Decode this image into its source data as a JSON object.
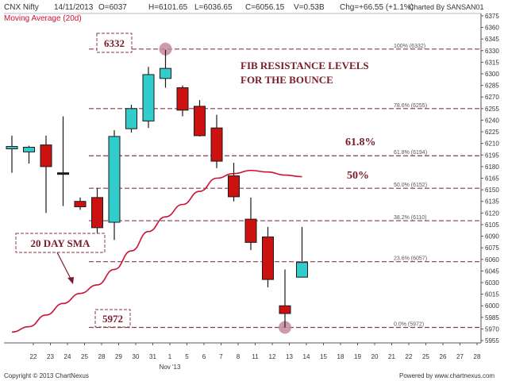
{
  "header": {
    "symbol": "CNX Nifty",
    "date": "14/11/2013",
    "open": "O=6037",
    "high": "H=6101.65",
    "low": "L=6036.65",
    "close": "C=6056.15",
    "volume": "V=0.53B",
    "change": "Chg=+66.55 (+1.1%)",
    "charted_by": "Charted By SANSAN01",
    "indicator": "Moving Average (20d)",
    "indicator_color": "#cc1133"
  },
  "footer": {
    "copyright": "Copyright © 2013 ChartNexus",
    "powered": "Powered by www.chartnexus.com"
  },
  "colors": {
    "up": "#33cccc",
    "down": "#cc1111",
    "neutral": "#1a1a1a",
    "sma": "#cc1133",
    "fib_line": "#8b3a4a",
    "annotation": "#7a1a2a",
    "marker": "#c48aa0"
  },
  "chart_data": {
    "type": "candlestick",
    "ylim": [
      5952,
      6378
    ],
    "y_ticks": [
      5955,
      5970,
      5985,
      6000,
      6015,
      6030,
      6045,
      6060,
      6075,
      6090,
      6105,
      6120,
      6135,
      6150,
      6165,
      6180,
      6195,
      6210,
      6225,
      6240,
      6255,
      6270,
      6285,
      6300,
      6315,
      6330,
      6345,
      6360,
      6375
    ],
    "x_tick_labels": [
      "22",
      "23",
      "24",
      "25",
      "28",
      "29",
      "30",
      "31",
      "1",
      "5",
      "6",
      "7",
      "8",
      "11",
      "12",
      "13",
      "14",
      "15",
      "18",
      "19",
      "20",
      "21",
      "22",
      "25",
      "26",
      "27",
      "28"
    ],
    "x_sublabel": "Nov '13",
    "candles": [
      {
        "o": 6203,
        "h": 6220,
        "l": 6172,
        "c": 6206
      },
      {
        "o": 6199,
        "h": 6207,
        "l": 6184,
        "c": 6205
      },
      {
        "o": 6208,
        "h": 6220,
        "l": 6120,
        "c": 6180
      },
      {
        "o": 6172,
        "h": 6245,
        "l": 6129,
        "c": 6172
      },
      {
        "o": 6135,
        "h": 6140,
        "l": 6124,
        "c": 6128
      },
      {
        "o": 6140,
        "h": 6152,
        "l": 6086,
        "c": 6101
      },
      {
        "o": 6108,
        "h": 6227,
        "l": 6085,
        "c": 6219
      },
      {
        "o": 6229,
        "h": 6260,
        "l": 6224,
        "c": 6255
      },
      {
        "o": 6239,
        "h": 6309,
        "l": 6230,
        "c": 6299
      },
      {
        "o": 6294,
        "h": 6331,
        "l": 6282,
        "c": 6307
      },
      {
        "o": 6282,
        "h": 6285,
        "l": 6245,
        "c": 6253
      },
      {
        "o": 6258,
        "h": 6266,
        "l": 6219,
        "c": 6220
      },
      {
        "o": 6230,
        "h": 6247,
        "l": 6178,
        "c": 6187
      },
      {
        "o": 6168,
        "h": 6185,
        "l": 6135,
        "c": 6141
      },
      {
        "o": 6112,
        "h": 6140,
        "l": 6072,
        "c": 6082
      },
      {
        "o": 6089,
        "h": 6102,
        "l": 6024,
        "c": 6034
      },
      {
        "o": 6000,
        "h": 6047,
        "l": 5972,
        "c": 5990
      },
      {
        "o": 6037,
        "h": 6102,
        "l": 6037,
        "c": 6056
      }
    ],
    "series": [
      {
        "name": "Moving Average (20d)",
        "points": [
          [
            0,
            5966
          ],
          [
            1,
            5973
          ],
          [
            2,
            5988
          ],
          [
            3,
            6003
          ],
          [
            4,
            6016
          ],
          [
            5,
            6027
          ],
          [
            6,
            6047
          ],
          [
            7,
            6071
          ],
          [
            8,
            6096
          ],
          [
            9,
            6115
          ],
          [
            10,
            6131
          ],
          [
            11,
            6148
          ],
          [
            12,
            6165
          ],
          [
            13,
            6171
          ],
          [
            14,
            6175
          ],
          [
            15,
            6173
          ],
          [
            16,
            6169
          ],
          [
            17,
            6167
          ]
        ]
      }
    ],
    "fib_levels": [
      {
        "pct": "100%",
        "value": 6332
      },
      {
        "pct": "78.6%",
        "value": 6255
      },
      {
        "pct": "61.8%",
        "value": 6194
      },
      {
        "pct": "50.0%",
        "value": 6152
      },
      {
        "pct": "38.2%",
        "value": 6110
      },
      {
        "pct": "23.6%",
        "value": 6057
      },
      {
        "pct": "0.0%",
        "value": 5972
      }
    ],
    "annotations": {
      "high_box": "6332",
      "low_box": "5972",
      "title_line1": "FIB RESISTANCE LEVELS",
      "title_line2": "FOR THE BOUNCE",
      "pct_618": "61.8%",
      "pct_50": "50%",
      "sma_label": "20 DAY SMA"
    }
  }
}
